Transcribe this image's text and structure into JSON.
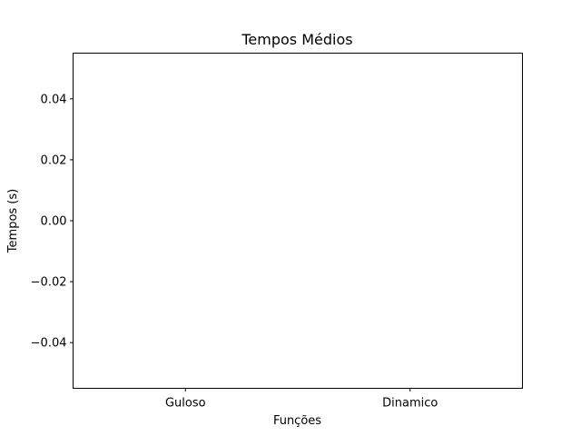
{
  "chart_data": {
    "type": "bar",
    "title": "Tempos Médios",
    "xlabel": "Funções",
    "ylabel": "Tempos (s)",
    "categories": [
      "Guloso",
      "Dinamico"
    ],
    "values": [
      0,
      0
    ],
    "ylim": [
      -0.055,
      0.055
    ],
    "yticks": [
      0.04,
      0.02,
      0.0,
      -0.02,
      -0.04
    ],
    "ytick_labels": [
      "0.04",
      "0.02",
      "0.00",
      "−0.02",
      "−0.04"
    ],
    "grid": false,
    "legend": "none",
    "colors": {
      "axis": "#000000",
      "bar": "#1f77b4",
      "background": "#ffffff"
    }
  }
}
